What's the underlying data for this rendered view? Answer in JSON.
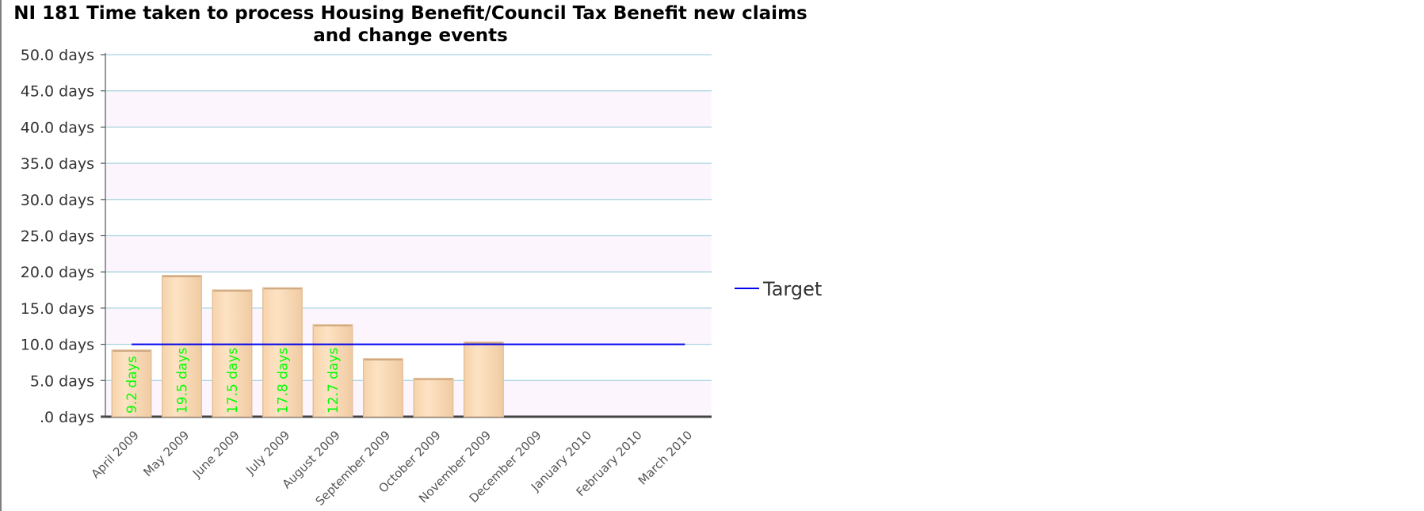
{
  "chart_data": {
    "type": "bar",
    "title": "NI 181 Time taken to process Housing Benefit/Council Tax Benefit new claims and change events",
    "xlabel": "",
    "ylabel": "",
    "categories": [
      "April 2009",
      "May 2009",
      "June 2009",
      "July 2009",
      "August 2009",
      "September 2009",
      "October 2009",
      "November 2009",
      "December 2009",
      "January 2010",
      "February 2010",
      "March 2010"
    ],
    "values": [
      9.2,
      19.5,
      17.5,
      17.8,
      12.7,
      8.0,
      5.3,
      10.3,
      null,
      null,
      null,
      null
    ],
    "data_labels": [
      "9.2 days",
      "19.5 days",
      "17.5 days",
      "17.8 days",
      "12.7 days",
      "",
      "",
      "",
      "",
      "",
      "",
      ""
    ],
    "ylim": [
      0,
      50
    ],
    "yticks": [
      ".0 days",
      "5.0 days",
      "10.0 days",
      "15.0 days",
      "20.0 days",
      "25.0 days",
      "30.0 days",
      "35.0 days",
      "40.0 days",
      "45.0 days",
      "50.0 days"
    ],
    "ytick_values": [
      0,
      5,
      10,
      15,
      20,
      25,
      30,
      35,
      40,
      45,
      50
    ],
    "target": {
      "name": "Target",
      "value": 10.0
    },
    "legend": {
      "entries": [
        "Target"
      ],
      "placement": "right"
    },
    "grid": true,
    "colors": {
      "bar_fill": "#fcddb6",
      "bar_edge": "#e3bf99",
      "target_line": "#0000ee",
      "data_label": "#00ff00",
      "gridline": "#a9d4e0",
      "plot_band_a": "#fdf5fd",
      "plot_band_b": "#ffffff"
    }
  }
}
